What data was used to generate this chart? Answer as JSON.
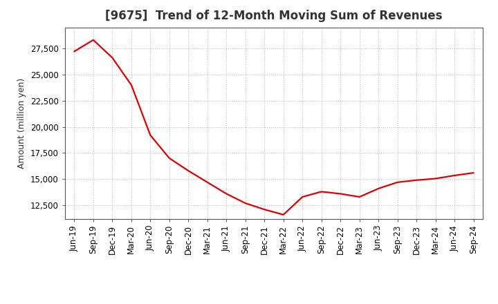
{
  "title": "[9675]  Trend of 12-Month Moving Sum of Revenues",
  "ylabel": "Amount (million yen)",
  "line_color": "#dd0000",
  "background_color": "#ffffff",
  "plot_bg_color": "#ffffff",
  "grid_color": "#bbbbbb",
  "x_labels": [
    "Jun-19",
    "Sep-19",
    "Dec-19",
    "Mar-20",
    "Jun-20",
    "Sep-20",
    "Dec-20",
    "Mar-21",
    "Jun-21",
    "Sep-21",
    "Dec-21",
    "Mar-22",
    "Jun-22",
    "Sep-22",
    "Dec-22",
    "Mar-23",
    "Jun-23",
    "Sep-23",
    "Dec-23",
    "Mar-24",
    "Jun-24",
    "Sep-24"
  ],
  "values": [
    27200,
    28300,
    26600,
    24000,
    19200,
    17000,
    15800,
    14700,
    13600,
    12700,
    12100,
    11600,
    13300,
    13800,
    13600,
    13300,
    14100,
    14700,
    14900,
    15050,
    15350,
    15600
  ],
  "ylim": [
    11200,
    29500
  ],
  "yticks": [
    12500,
    15000,
    17500,
    20000,
    22500,
    25000,
    27500
  ],
  "title_fontsize": 12,
  "title_color": "#333333",
  "axis_label_fontsize": 9,
  "tick_fontsize": 8.5
}
